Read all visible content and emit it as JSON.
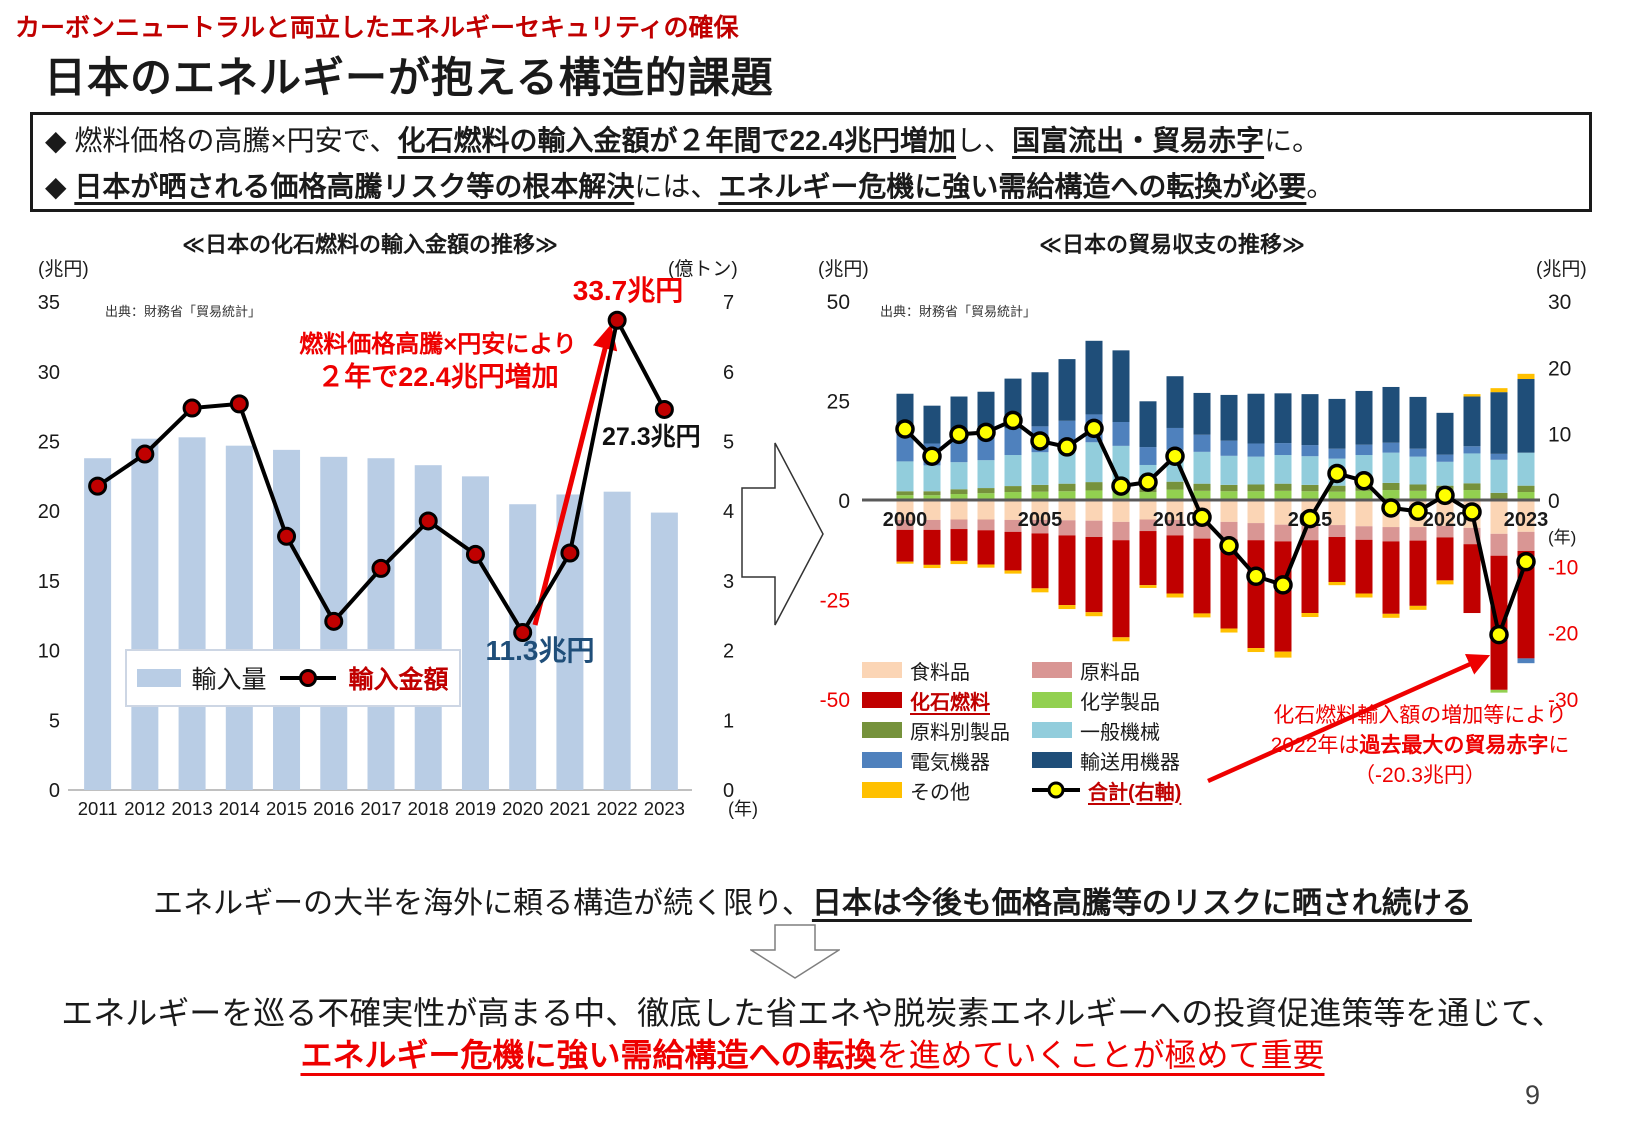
{
  "page": {
    "kicker": "カーボンニュートラルと両立したエネルギーセキュリティの確保",
    "title": "日本のエネルギーが抱える構造的課題",
    "page_number": "9"
  },
  "summary_box": {
    "bullets": [
      {
        "segments": [
          {
            "t": "◆ ",
            "b": false,
            "u": false
          },
          {
            "t": "燃料価格の高騰×円安で、",
            "b": false,
            "u": false
          },
          {
            "t": "化石燃料の輸入金額が２年間で22.4兆円増加",
            "b": true,
            "u": true
          },
          {
            "t": "し、",
            "b": false,
            "u": false
          },
          {
            "t": "国富流出・貿易赤字",
            "b": true,
            "u": true
          },
          {
            "t": "に。",
            "b": false,
            "u": false
          }
        ]
      },
      {
        "segments": [
          {
            "t": "◆ ",
            "b": false,
            "u": false
          },
          {
            "t": "日本が晒される価格高騰リスク等の根本解決",
            "b": true,
            "u": true
          },
          {
            "t": "には、",
            "b": false,
            "u": false
          },
          {
            "t": "エネルギー危機に強い需給構造への転換が必要",
            "b": true,
            "u": true
          },
          {
            "t": "。",
            "b": false,
            "u": false
          }
        ]
      }
    ]
  },
  "chart_data": [
    {
      "id": "fossil-fuel-import-value",
      "type": "bar",
      "title": "≪日本の化石燃料の輸入金額の推移≫",
      "source": "出典：財務省「貿易統計」",
      "left_axis": {
        "unit": "(兆円)",
        "min": 0,
        "max": 35,
        "step": 5
      },
      "right_axis": {
        "unit": "(億トン)",
        "min": 0,
        "max": 7,
        "step": 1
      },
      "x_unit": "(年)",
      "categories": [
        2011,
        2012,
        2013,
        2014,
        2015,
        2016,
        2017,
        2018,
        2019,
        2020,
        2021,
        2022,
        2023
      ],
      "series": [
        {
          "name": "輸入量",
          "type": "bar",
          "axis": "right",
          "color": "#B9CDE5",
          "values": [
            4.76,
            5.04,
            5.06,
            4.94,
            4.88,
            4.78,
            4.76,
            4.66,
            4.5,
            4.1,
            4.24,
            4.28,
            3.98
          ]
        },
        {
          "name": "輸入金額",
          "type": "line",
          "axis": "left",
          "color": "#000000",
          "marker_color": "#C00000",
          "values": [
            21.8,
            24.1,
            27.4,
            27.7,
            18.2,
            12.1,
            15.9,
            19.3,
            16.9,
            11.3,
            17.0,
            33.7,
            27.3
          ]
        }
      ],
      "annotations": {
        "peak_label": "33.7兆円",
        "end_label": "27.3兆円",
        "low_label": "11.3兆円",
        "note_line1": "燃料価格高騰×円安により",
        "note_line2": "２年で22.4兆円増加"
      }
    },
    {
      "id": "trade-balance",
      "type": "bar",
      "title": "≪日本の貿易収支の推移≫",
      "source": "出典：財務省「貿易統計」",
      "left_axis": {
        "unit": "(兆円)",
        "min": -50,
        "max": 50,
        "step": 25
      },
      "right_axis": {
        "unit": "(兆円)",
        "min": -30,
        "max": 30,
        "step": 10
      },
      "x_unit": "(年)",
      "categories": [
        2000,
        2001,
        2002,
        2003,
        2004,
        2005,
        2006,
        2007,
        2008,
        2009,
        2010,
        2011,
        2012,
        2013,
        2014,
        2015,
        2016,
        2017,
        2018,
        2019,
        2020,
        2021,
        2022,
        2023
      ],
      "x_tick_years": [
        2000,
        2005,
        2010,
        2015,
        2020,
        2023
      ],
      "series": [
        {
          "key": "food",
          "name": "食料品",
          "color": "#FBD5B5",
          "values": [
            -5.0,
            -5.0,
            -4.9,
            -4.9,
            -5.0,
            -5.0,
            -5.1,
            -5.2,
            -5.5,
            -4.9,
            -5.0,
            -5.3,
            -5.5,
            -5.8,
            -6.2,
            -6.5,
            -6.3,
            -6.6,
            -6.8,
            -6.8,
            -6.5,
            -7.0,
            -8.5,
            -8.0
          ]
        },
        {
          "key": "raw_materials",
          "name": "原料品",
          "color": "#D99694",
          "values": [
            -2.5,
            -2.5,
            -2.4,
            -2.7,
            -3.0,
            -3.4,
            -3.8,
            -4.1,
            -4.6,
            -2.9,
            -3.9,
            -4.4,
            -4.4,
            -4.3,
            -4.2,
            -3.6,
            -3.0,
            -3.4,
            -3.6,
            -3.4,
            -2.9,
            -4.1,
            -5.5,
            -4.8
          ]
        },
        {
          "key": "fossil_fuel",
          "name": "化石燃料",
          "color": "#C00000",
          "emphasis": true,
          "values": [
            -8.0,
            -8.8,
            -8.0,
            -8.6,
            -9.7,
            -13.8,
            -17.5,
            -18.9,
            -24.4,
            -13.6,
            -14.6,
            -18.8,
            -22.4,
            -27.1,
            -27.7,
            -18.3,
            -11.3,
            -13.5,
            -18.2,
            -16.4,
            -10.8,
            -17.3,
            -33.7,
            -27.0
          ]
        },
        {
          "key": "chemicals",
          "name": "化学製品",
          "color": "#92D050",
          "values": [
            1.2,
            1.2,
            1.5,
            1.7,
            2.0,
            2.1,
            2.2,
            2.4,
            2.3,
            2.0,
            2.6,
            2.3,
            2.2,
            2.2,
            2.3,
            2.2,
            2.1,
            2.3,
            2.5,
            2.3,
            2.2,
            2.5,
            -0.7,
            2.0
          ]
        },
        {
          "key": "manufactured_goods",
          "name": "原料別製品",
          "color": "#76923C",
          "values": [
            1.0,
            1.0,
            1.2,
            1.3,
            1.5,
            1.7,
            1.9,
            2.1,
            2.0,
            1.3,
            2.0,
            1.8,
            1.6,
            1.7,
            1.8,
            1.6,
            1.5,
            1.7,
            1.8,
            1.6,
            1.4,
            1.7,
            1.8,
            1.6
          ]
        },
        {
          "key": "general_machinery",
          "name": "一般機械",
          "color": "#92CDDC",
          "values": [
            7.5,
            6.5,
            6.8,
            7.0,
            7.8,
            8.2,
            9.0,
            10.0,
            9.3,
            5.5,
            8.0,
            8.0,
            7.3,
            7.0,
            7.2,
            7.2,
            6.8,
            7.3,
            7.6,
            7.0,
            6.0,
            7.5,
            8.3,
            8.3
          ]
        },
        {
          "key": "electrical_machinery",
          "name": "電気機器",
          "color": "#4F81BD",
          "values": [
            7.0,
            5.5,
            6.0,
            6.2,
            6.7,
            6.5,
            6.8,
            7.0,
            6.0,
            4.5,
            5.5,
            4.3,
            3.8,
            3.3,
            3.0,
            2.8,
            2.5,
            2.6,
            2.5,
            2.0,
            1.8,
            1.8,
            1.5,
            -1.2
          ]
        },
        {
          "key": "transport_equipment",
          "name": "輸送用機器",
          "color": "#1F4E79",
          "values": [
            10.0,
            9.5,
            10.5,
            11.0,
            12.5,
            13.6,
            15.5,
            18.5,
            18.0,
            11.5,
            13.0,
            10.5,
            11.5,
            12.5,
            12.5,
            12.8,
            12.5,
            13.5,
            14.0,
            13.0,
            10.5,
            12.5,
            15.5,
            18.5
          ]
        },
        {
          "key": "other",
          "name": "その他",
          "color": "#FFC000",
          "values": [
            -0.5,
            -0.8,
            -0.8,
            -0.8,
            -0.8,
            -1.0,
            -1.0,
            -1.0,
            -1.0,
            -0.7,
            -1.0,
            -1.0,
            -1.0,
            -1.0,
            -1.5,
            -1.0,
            -0.8,
            -1.0,
            -1.0,
            -1.0,
            -1.0,
            0.6,
            1.0,
            1.3
          ]
        }
      ],
      "total_series": {
        "key": "total",
        "name": "合計(右軸)",
        "axis": "right",
        "color": "#000000",
        "marker_color": "#FFFF00",
        "emphasis": true,
        "values": [
          10.7,
          6.6,
          9.9,
          10.2,
          12.0,
          8.9,
          8.0,
          10.8,
          2.1,
          2.7,
          6.6,
          -2.6,
          -6.9,
          -11.5,
          -12.8,
          -2.8,
          4.0,
          2.9,
          -1.2,
          -1.7,
          0.7,
          -1.8,
          -20.3,
          -9.3
        ]
      },
      "annotations": {
        "note_line1": "化石燃料輸入額の増加等により",
        "note_line2_pre": "2022年は",
        "note_line2_bold": "過去最大の貿易赤字",
        "note_line2_post": "に",
        "note_line3": "（-20.3兆円）"
      }
    }
  ],
  "bottom": {
    "s1_plain": "エネルギーの大半を海外に頼る構造が続く限り、",
    "s1_strong": "日本は今後も価格高騰等のリスクに晒され続ける",
    "s2_line1": "エネルギーを巡る不確実性が高まる中、徹底した省エネや脱炭素エネルギーへの投資促進策等を通じて、",
    "s2_line2_strong": "エネルギー危機に強い需給構造への転換",
    "s2_line2_plain": "を進めていくことが極めて重要"
  }
}
